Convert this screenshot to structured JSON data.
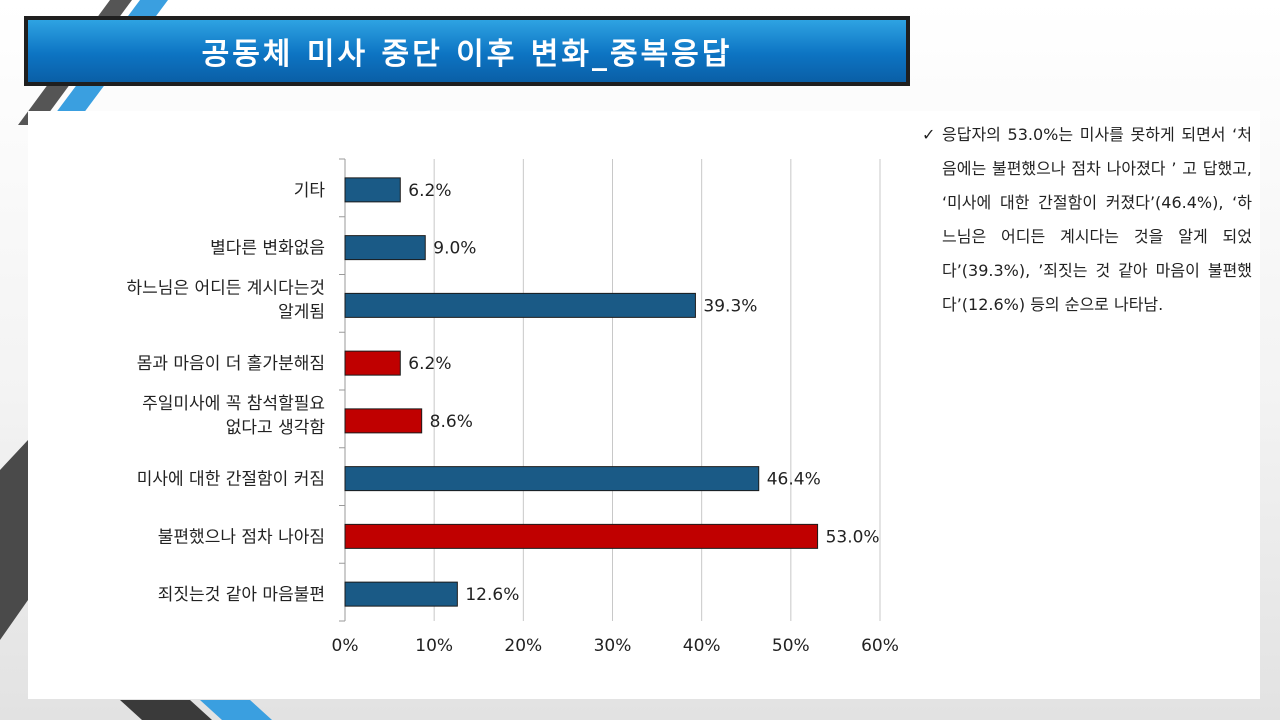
{
  "slide": {
    "title": "공동체 미사 중단 이후 변화_중복응답",
    "note_check": "✓",
    "note_text": "응답자의 53.0%는 미사를 못하게 되면서 ‘처음에는 불편했으나 점차 나아졌다 ’ 고 답했고, ‘미사에 대한 간절함이 커졌다’(46.4%), ‘하느님은 어디든 계시다는 것을 알게 되었다’(39.3%), ’죄짓는 것 같아 마음이 불편했다’(12.6%) 등의 순으로 나타남."
  },
  "colors": {
    "blue_bar": "#1a5a86",
    "red_bar": "#c00000",
    "title_bg": "#1280cf"
  },
  "chart_data": {
    "type": "bar",
    "orientation": "horizontal",
    "categories": [
      "기타",
      "별다른 변화없음",
      "하느님은 어디든 계시다는것\n알게됨",
      "몸과 마음이 더 홀가분해짐",
      "주일미사에 꼭 참석할필요\n없다고 생각함",
      "미사에 대한 간절함이 커짐",
      "불편했으나 점차 나아짐",
      "죄짓는것 같아 마음불편"
    ],
    "values": [
      6.2,
      9.0,
      39.3,
      6.2,
      8.6,
      46.4,
      53.0,
      12.6
    ],
    "value_labels": [
      "6.2%",
      "9.0%",
      "39.3%",
      "6.2%",
      "8.6%",
      "46.4%",
      "53.0%",
      "12.6%"
    ],
    "bar_colors": [
      "#1a5a86",
      "#1a5a86",
      "#1a5a86",
      "#c00000",
      "#c00000",
      "#1a5a86",
      "#c00000",
      "#1a5a86"
    ],
    "xlim": [
      0,
      60
    ],
    "xticks": [
      "0%",
      "10%",
      "20%",
      "30%",
      "40%",
      "50%",
      "60%"
    ],
    "grid": "vertical"
  }
}
